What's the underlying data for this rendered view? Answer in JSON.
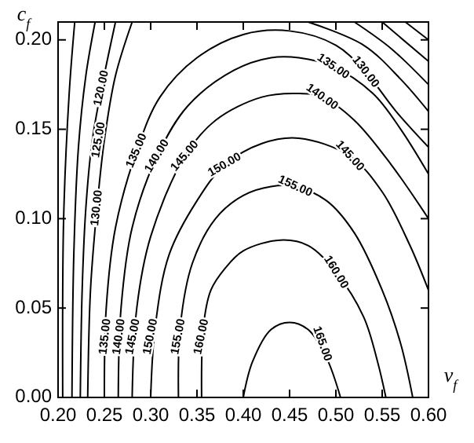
{
  "chart_data": {
    "type": "line",
    "xlabel": "v$_{f}$",
    "ylabel": "c$_{f}$",
    "xlim": [
      0.2,
      0.6
    ],
    "ylim": [
      0,
      0.21
    ],
    "xticks": [
      {
        "value": 0.2,
        "label": "0.20"
      },
      {
        "value": 0.25,
        "label": "0.25"
      },
      {
        "value": 0.3,
        "label": "0.30"
      },
      {
        "value": 0.35,
        "label": "0.35"
      },
      {
        "value": 0.4,
        "label": "0.40"
      },
      {
        "value": 0.45,
        "label": "0.45"
      },
      {
        "value": 0.5,
        "label": "0.50"
      },
      {
        "value": 0.55,
        "label": "0.55"
      },
      {
        "value": 0.6,
        "label": "0.60"
      }
    ],
    "yticks": [
      {
        "value": 0,
        "label": "0.00"
      },
      {
        "value": 0.05,
        "label": "0.05"
      },
      {
        "value": 0.1,
        "label": "0.10"
      },
      {
        "value": 0.15,
        "label": "0.15"
      },
      {
        "value": 0.2,
        "label": "0.20"
      }
    ],
    "series": [
      {
        "color": "#000000",
        "x": [
          0.4,
          0.41,
          0.43,
          0.45,
          0.47,
          0.49,
          0.505
        ],
        "values": [
          0,
          0.02,
          0.038,
          0.042,
          0.038,
          0.022,
          0
        ]
      },
      {
        "color": "#000000",
        "x": [
          0.355,
          0.357,
          0.365,
          0.38,
          0.4,
          0.44,
          0.47,
          0.5,
          0.53,
          0.545,
          0.554
        ],
        "values": [
          0,
          0.04,
          0.06,
          0.072,
          0.082,
          0.088,
          0.085,
          0.07,
          0.045,
          0.02,
          0
        ]
      },
      {
        "color": "#000000",
        "x": [
          0.33,
          0.332,
          0.345,
          0.37,
          0.4,
          0.43,
          0.456,
          0.49,
          0.52,
          0.55,
          0.57,
          0.583
        ],
        "values": [
          0,
          0.04,
          0.075,
          0.1,
          0.113,
          0.118,
          0.118,
          0.11,
          0.092,
          0.06,
          0.03,
          0
        ]
      },
      {
        "color": "#000000",
        "x": [
          0.3,
          0.305,
          0.32,
          0.35,
          0.38,
          0.42,
          0.46,
          0.515,
          0.55,
          0.58,
          0.6
        ],
        "values": [
          0,
          0.04,
          0.08,
          0.11,
          0.13,
          0.142,
          0.145,
          0.135,
          0.115,
          0.085,
          0.06
        ]
      },
      {
        "color": "#000000",
        "x": [
          0.28,
          0.285,
          0.3,
          0.337,
          0.37,
          0.42,
          0.46,
          0.485,
          0.52,
          0.56,
          0.6
        ],
        "values": [
          0,
          0.05,
          0.09,
          0.135,
          0.155,
          0.168,
          0.17,
          0.168,
          0.155,
          0.13,
          0.1
        ]
      },
      {
        "color": "#000000",
        "x": [
          0.265,
          0.268,
          0.28,
          0.307,
          0.34,
          0.39,
          0.43,
          0.46,
          0.497,
          0.54,
          0.57,
          0.6
        ],
        "values": [
          0,
          0.05,
          0.095,
          0.135,
          0.163,
          0.183,
          0.19,
          0.19,
          0.185,
          0.17,
          0.15,
          0.125
        ]
      },
      {
        "color": "#000000",
        "x": [
          0.25,
          0.252,
          0.262,
          0.285,
          0.31,
          0.35,
          0.4,
          0.45,
          0.5,
          0.532,
          0.565,
          0.6
        ],
        "values": [
          0,
          0.05,
          0.095,
          0.138,
          0.168,
          0.19,
          0.203,
          0.205,
          0.197,
          0.182,
          0.16,
          0.14
        ]
      },
      {
        "color": "#000000",
        "x": [
          0.47,
          0.53,
          0.57,
          0.6
        ],
        "values": [
          0.21,
          0.197,
          0.178,
          0.16
        ]
      },
      {
        "color": "#000000",
        "x": [
          0.52,
          0.56,
          0.6
        ],
        "values": [
          0.21,
          0.195,
          0.175
        ]
      },
      {
        "color": "#000000",
        "x": [
          0.55,
          0.6
        ],
        "values": [
          0.21,
          0.188
        ]
      },
      {
        "color": "#000000",
        "x": [
          0.575,
          0.6
        ],
        "values": [
          0.21,
          0.2
        ]
      },
      {
        "color": "#000000",
        "x": [
          0.232,
          0.235,
          0.242,
          0.25,
          0.262,
          0.28
        ],
        "values": [
          0,
          0.06,
          0.106,
          0.144,
          0.18,
          0.21
        ]
      },
      {
        "color": "#000000",
        "x": [
          0.224,
          0.226,
          0.23,
          0.237,
          0.247,
          0.262
        ],
        "values": [
          0,
          0.06,
          0.106,
          0.144,
          0.173,
          0.21
        ]
      },
      {
        "color": "#000000",
        "x": [
          0.215,
          0.217,
          0.222,
          0.23,
          0.24
        ],
        "values": [
          0,
          0.08,
          0.14,
          0.18,
          0.21
        ]
      },
      {
        "color": "#000000",
        "x": [
          0.205,
          0.206,
          0.212,
          0.218
        ],
        "values": [
          0,
          0.1,
          0.17,
          0.21
        ]
      }
    ],
    "annotations": [
      {
        "text": "120.00",
        "x": 0.247,
        "y": 0.173
      },
      {
        "text": "125.00",
        "x": 0.244,
        "y": 0.144
      },
      {
        "text": "130.00",
        "x": 0.242,
        "y": 0.106
      },
      {
        "text": "135.00",
        "x": 0.285,
        "y": 0.138
      },
      {
        "text": "140.00",
        "x": 0.307,
        "y": 0.135
      },
      {
        "text": "145.00",
        "x": 0.337,
        "y": 0.135
      },
      {
        "text": "150.00",
        "x": 0.38,
        "y": 0.13
      },
      {
        "text": "155.00",
        "x": 0.456,
        "y": 0.118
      },
      {
        "text": "135.00",
        "x": 0.497,
        "y": 0.185
      },
      {
        "text": "130.00",
        "x": 0.532,
        "y": 0.182
      },
      {
        "text": "140.00",
        "x": 0.485,
        "y": 0.168
      },
      {
        "text": "145.00",
        "x": 0.515,
        "y": 0.135
      },
      {
        "text": "160.00",
        "x": 0.5,
        "y": 0.07
      },
      {
        "text": "165.00",
        "x": 0.485,
        "y": 0.03
      },
      {
        "text": "135.00",
        "x": 0.251,
        "y": 0.034
      },
      {
        "text": "140.00",
        "x": 0.266,
        "y": 0.034
      },
      {
        "text": "145.00",
        "x": 0.281,
        "y": 0.034
      },
      {
        "text": "150.00",
        "x": 0.3,
        "y": 0.034
      },
      {
        "text": "155.00",
        "x": 0.33,
        "y": 0.034
      },
      {
        "text": "160.00",
        "x": 0.355,
        "y": 0.034
      }
    ]
  }
}
